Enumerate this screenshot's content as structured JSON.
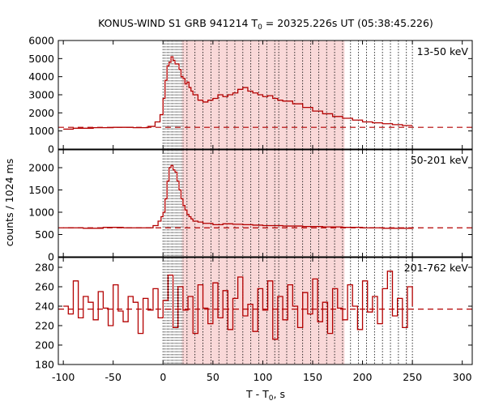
{
  "chart_data": {
    "type": "line",
    "title": {
      "prefix": "KONUS-WIND S1 GRB 941214 T",
      "subscript": "0",
      "suffix": " = 20325.226s UT (05:38:45.226)"
    },
    "xlabel": {
      "prefix": "T - T",
      "subscript": "0",
      "suffix": ", s"
    },
    "ylabel": "counts / 1024 ms",
    "xlim": [
      -105,
      310
    ],
    "xticks": [
      -100,
      -50,
      0,
      50,
      100,
      150,
      200,
      250,
      300
    ],
    "x_tick_labels": [
      "-100",
      "-50",
      "0",
      "50",
      "100",
      "150",
      "200",
      "250",
      "300"
    ],
    "shaded_interval": {
      "start": 19,
      "end": 182,
      "color": "#f9d8d8"
    },
    "vertical_marker_lines": [
      0,
      2,
      4,
      6,
      8,
      10,
      12,
      14,
      16,
      18,
      20,
      24,
      32,
      40,
      48,
      56,
      64,
      72,
      80,
      88,
      96,
      104,
      112,
      116,
      124,
      132,
      140,
      148,
      156,
      164,
      172,
      180,
      188,
      196,
      204,
      212,
      220,
      228,
      236,
      244,
      250
    ],
    "line_color": "#b30000",
    "panels": [
      {
        "label": "13-50 keV",
        "ylim": [
          0,
          6000
        ],
        "yticks": [
          0,
          1000,
          2000,
          3000,
          4000,
          5000,
          6000
        ],
        "y_tick_labels": [
          "0",
          "1000",
          "2000",
          "3000",
          "4000",
          "5000",
          "6000"
        ],
        "background_level": 1200,
        "lightcurve": {
          "x": [
            -100,
            -90,
            -70,
            -50,
            -30,
            -15,
            -8,
            -3,
            0,
            2,
            4,
            6,
            8,
            10,
            12,
            14,
            16,
            18,
            20,
            22,
            24,
            26,
            28,
            30,
            35,
            40,
            45,
            50,
            55,
            60,
            65,
            70,
            75,
            80,
            85,
            90,
            95,
            100,
            105,
            110,
            115,
            120,
            130,
            140,
            150,
            160,
            170,
            180,
            190,
            200,
            210,
            220,
            230,
            240,
            250
          ],
          "y": [
            1100,
            1150,
            1180,
            1200,
            1180,
            1250,
            1500,
            1900,
            2800,
            3800,
            4600,
            4800,
            5100,
            4900,
            4700,
            4700,
            4400,
            4000,
            3900,
            3600,
            3700,
            3400,
            3200,
            3000,
            2700,
            2600,
            2700,
            2800,
            3000,
            2900,
            3000,
            3100,
            3300,
            3400,
            3200,
            3100,
            3000,
            2900,
            2950,
            2800,
            2700,
            2650,
            2500,
            2300,
            2100,
            1950,
            1800,
            1700,
            1600,
            1500,
            1450,
            1400,
            1350,
            1300,
            1300
          ]
        }
      },
      {
        "label": "50-201 keV",
        "ylim": [
          0,
          2400
        ],
        "yticks": [
          0,
          500,
          1000,
          1500,
          2000
        ],
        "y_tick_labels": [
          "0",
          "500",
          "1000",
          "1500",
          "2000"
        ],
        "background_level": 650,
        "lightcurve": {
          "x": [
            -100,
            -80,
            -60,
            -40,
            -20,
            -10,
            -5,
            -2,
            0,
            2,
            4,
            6,
            8,
            10,
            12,
            14,
            16,
            18,
            20,
            22,
            24,
            26,
            28,
            30,
            35,
            40,
            50,
            60,
            70,
            80,
            90,
            100,
            120,
            140,
            160,
            180,
            200,
            220,
            250
          ],
          "y": [
            650,
            640,
            660,
            650,
            650,
            700,
            800,
            900,
            1000,
            1300,
            1700,
            2000,
            2050,
            1950,
            1900,
            1700,
            1500,
            1300,
            1150,
            1050,
            950,
            900,
            850,
            800,
            780,
            750,
            720,
            740,
            730,
            720,
            710,
            700,
            690,
            680,
            670,
            660,
            650,
            640,
            650
          ]
        }
      },
      {
        "label": "201-762 keV",
        "ylim": [
          180,
          290
        ],
        "yticks": [
          180,
          200,
          220,
          240,
          260,
          280
        ],
        "y_tick_labels": [
          "180",
          "200",
          "220",
          "240",
          "260",
          "280"
        ],
        "background_level": 237,
        "lightcurve": {
          "x": [
            -100,
            -95,
            -90,
            -85,
            -80,
            -75,
            -70,
            -65,
            -60,
            -55,
            -50,
            -45,
            -40,
            -35,
            -30,
            -25,
            -20,
            -15,
            -10,
            -5,
            0,
            5,
            10,
            15,
            20,
            25,
            30,
            35,
            40,
            45,
            50,
            55,
            60,
            65,
            70,
            75,
            80,
            85,
            90,
            95,
            100,
            105,
            110,
            115,
            120,
            125,
            130,
            135,
            140,
            145,
            150,
            155,
            160,
            165,
            170,
            175,
            180,
            185,
            190,
            195,
            200,
            205,
            210,
            215,
            220,
            225,
            230,
            235,
            240,
            245,
            250
          ],
          "y": [
            240,
            232,
            266,
            228,
            250,
            244,
            226,
            255,
            238,
            220,
            262,
            235,
            224,
            250,
            244,
            212,
            248,
            236,
            258,
            228,
            246,
            272,
            218,
            260,
            236,
            250,
            212,
            262,
            238,
            222,
            264,
            228,
            256,
            216,
            248,
            270,
            230,
            242,
            214,
            258,
            236,
            266,
            206,
            250,
            226,
            262,
            240,
            218,
            254,
            232,
            268,
            224,
            244,
            212,
            258,
            238,
            226,
            262,
            240,
            216,
            266,
            234,
            250,
            222,
            258,
            276,
            230,
            248,
            218,
            260,
            240
          ]
        }
      }
    ]
  }
}
